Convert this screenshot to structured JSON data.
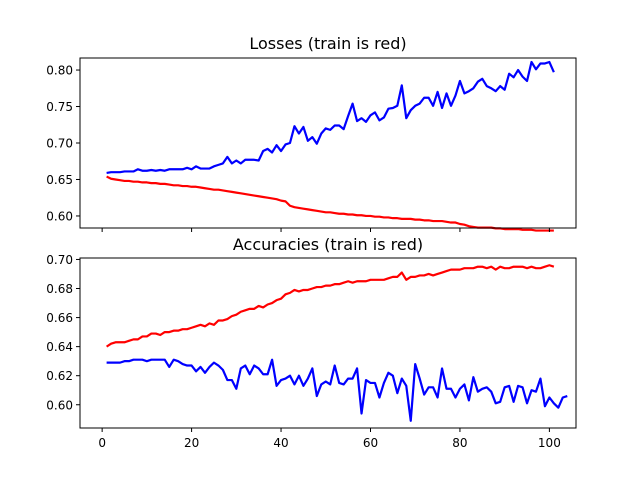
{
  "chart_data": [
    {
      "type": "line",
      "title": "Losses (train is red)",
      "xlabel": "",
      "ylabel": "",
      "xlim": [
        -4.95,
        105.95
      ],
      "ylim": [
        0.5835,
        0.8165
      ],
      "grid": false,
      "yticks": [
        0.6,
        0.65,
        0.7,
        0.75,
        0.8
      ],
      "ytick_labels": [
        "0.60",
        "0.65",
        "0.70",
        "0.75",
        "0.80"
      ],
      "xticks": [
        0,
        20,
        40,
        60,
        80,
        100
      ],
      "xtick_labels": [],
      "x_start": 1,
      "series": [
        {
          "color": "#0000ff",
          "values": [
            0.659,
            0.66,
            0.66,
            0.66,
            0.661,
            0.661,
            0.661,
            0.664,
            0.662,
            0.662,
            0.663,
            0.662,
            0.663,
            0.662,
            0.664,
            0.664,
            0.664,
            0.664,
            0.666,
            0.664,
            0.668,
            0.665,
            0.665,
            0.665,
            0.668,
            0.67,
            0.672,
            0.681,
            0.672,
            0.676,
            0.672,
            0.677,
            0.677,
            0.677,
            0.676,
            0.689,
            0.692,
            0.687,
            0.697,
            0.689,
            0.698,
            0.7,
            0.723,
            0.713,
            0.722,
            0.703,
            0.708,
            0.699,
            0.713,
            0.72,
            0.718,
            0.724,
            0.724,
            0.719,
            0.737,
            0.754,
            0.73,
            0.734,
            0.729,
            0.738,
            0.742,
            0.731,
            0.735,
            0.747,
            0.748,
            0.751,
            0.779,
            0.734,
            0.745,
            0.751,
            0.754,
            0.762,
            0.762,
            0.751,
            0.77,
            0.748,
            0.768,
            0.751,
            0.765,
            0.785,
            0.768,
            0.771,
            0.775,
            0.784,
            0.788,
            0.778,
            0.775,
            0.771,
            0.778,
            0.773,
            0.795,
            0.79,
            0.8,
            0.791,
            0.785,
            0.811,
            0.801,
            0.809,
            0.809,
            0.811,
            0.797
          ]
        },
        {
          "color": "#ff0000",
          "values": [
            0.654,
            0.651,
            0.65,
            0.649,
            0.648,
            0.648,
            0.647,
            0.647,
            0.646,
            0.646,
            0.645,
            0.645,
            0.644,
            0.644,
            0.643,
            0.642,
            0.642,
            0.641,
            0.641,
            0.64,
            0.64,
            0.639,
            0.638,
            0.637,
            0.636,
            0.636,
            0.635,
            0.634,
            0.633,
            0.632,
            0.631,
            0.63,
            0.629,
            0.628,
            0.627,
            0.626,
            0.625,
            0.624,
            0.623,
            0.621,
            0.62,
            0.614,
            0.612,
            0.611,
            0.61,
            0.609,
            0.608,
            0.607,
            0.606,
            0.605,
            0.605,
            0.604,
            0.603,
            0.603,
            0.602,
            0.602,
            0.601,
            0.601,
            0.6,
            0.6,
            0.599,
            0.599,
            0.598,
            0.598,
            0.597,
            0.597,
            0.596,
            0.596,
            0.596,
            0.595,
            0.595,
            0.594,
            0.594,
            0.593,
            0.593,
            0.593,
            0.592,
            0.591,
            0.591,
            0.589,
            0.588,
            0.586,
            0.585,
            0.584,
            0.584,
            0.584,
            0.584,
            0.583,
            0.583,
            0.582,
            0.582,
            0.582,
            0.582,
            0.581,
            0.581,
            0.581,
            0.58,
            0.58,
            0.58,
            0.58,
            0.58
          ]
        }
      ]
    },
    {
      "type": "line",
      "title": "Accuracies (train is red)",
      "xlabel": "",
      "ylabel": "",
      "xlim": [
        -4.95,
        105.95
      ],
      "ylim": [
        0.584,
        0.701
      ],
      "grid": false,
      "yticks": [
        0.6,
        0.62,
        0.64,
        0.66,
        0.68,
        0.7
      ],
      "ytick_labels": [
        "0.60",
        "0.62",
        "0.64",
        "0.66",
        "0.68",
        "0.70"
      ],
      "xticks": [
        0,
        20,
        40,
        60,
        80,
        100
      ],
      "xtick_labels": [
        "0",
        "20",
        "40",
        "60",
        "80",
        "100"
      ],
      "x_start": 1,
      "series": [
        {
          "color": "#ff0000",
          "values": [
            0.64,
            0.642,
            0.643,
            0.643,
            0.643,
            0.644,
            0.645,
            0.645,
            0.647,
            0.647,
            0.649,
            0.649,
            0.648,
            0.65,
            0.65,
            0.651,
            0.651,
            0.652,
            0.652,
            0.653,
            0.654,
            0.655,
            0.654,
            0.656,
            0.655,
            0.658,
            0.658,
            0.659,
            0.661,
            0.662,
            0.664,
            0.665,
            0.666,
            0.666,
            0.668,
            0.667,
            0.669,
            0.67,
            0.672,
            0.673,
            0.676,
            0.677,
            0.679,
            0.678,
            0.679,
            0.679,
            0.68,
            0.681,
            0.681,
            0.682,
            0.682,
            0.683,
            0.683,
            0.684,
            0.685,
            0.684,
            0.685,
            0.685,
            0.685,
            0.686,
            0.686,
            0.686,
            0.686,
            0.687,
            0.688,
            0.688,
            0.691,
            0.686,
            0.688,
            0.688,
            0.689,
            0.689,
            0.69,
            0.689,
            0.69,
            0.691,
            0.692,
            0.693,
            0.693,
            0.693,
            0.694,
            0.694,
            0.694,
            0.695,
            0.695,
            0.694,
            0.695,
            0.693,
            0.695,
            0.694,
            0.694,
            0.695,
            0.695,
            0.695,
            0.694,
            0.695,
            0.694,
            0.694,
            0.695,
            0.696,
            0.695
          ]
        },
        {
          "color": "#0000ff",
          "values": [
            0.629,
            0.629,
            0.629,
            0.629,
            0.63,
            0.63,
            0.631,
            0.631,
            0.631,
            0.63,
            0.631,
            0.631,
            0.631,
            0.631,
            0.626,
            0.631,
            0.63,
            0.628,
            0.627,
            0.627,
            0.623,
            0.626,
            0.622,
            0.626,
            0.629,
            0.627,
            0.624,
            0.617,
            0.617,
            0.611,
            0.625,
            0.627,
            0.621,
            0.627,
            0.625,
            0.621,
            0.621,
            0.631,
            0.613,
            0.617,
            0.618,
            0.62,
            0.614,
            0.62,
            0.613,
            0.618,
            0.625,
            0.606,
            0.614,
            0.616,
            0.614,
            0.627,
            0.615,
            0.614,
            0.618,
            0.618,
            0.625,
            0.594,
            0.617,
            0.615,
            0.615,
            0.605,
            0.615,
            0.622,
            0.62,
            0.608,
            0.618,
            0.613,
            0.589,
            0.628,
            0.618,
            0.607,
            0.612,
            0.612,
            0.605,
            0.625,
            0.611,
            0.611,
            0.605,
            0.611,
            0.614,
            0.603,
            0.619,
            0.609,
            0.611,
            0.612,
            0.609,
            0.601,
            0.602,
            0.612,
            0.613,
            0.602,
            0.613,
            0.612,
            0.601,
            0.61,
            0.609,
            0.618,
            0.599,
            0.605,
            0.601,
            0.598,
            0.605,
            0.606
          ]
        }
      ]
    }
  ]
}
